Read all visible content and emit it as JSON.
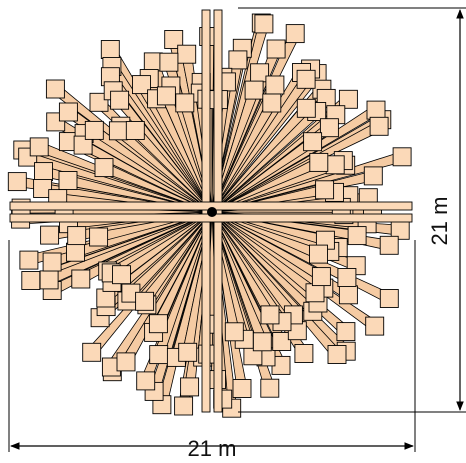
{
  "dimensions": {
    "width_label": "21 m",
    "height_label": "21 m"
  },
  "sculpture": {
    "beam_fill": "#fbd9b8",
    "beam_side_fill": "#f5cba3",
    "stroke": "#000000"
  }
}
